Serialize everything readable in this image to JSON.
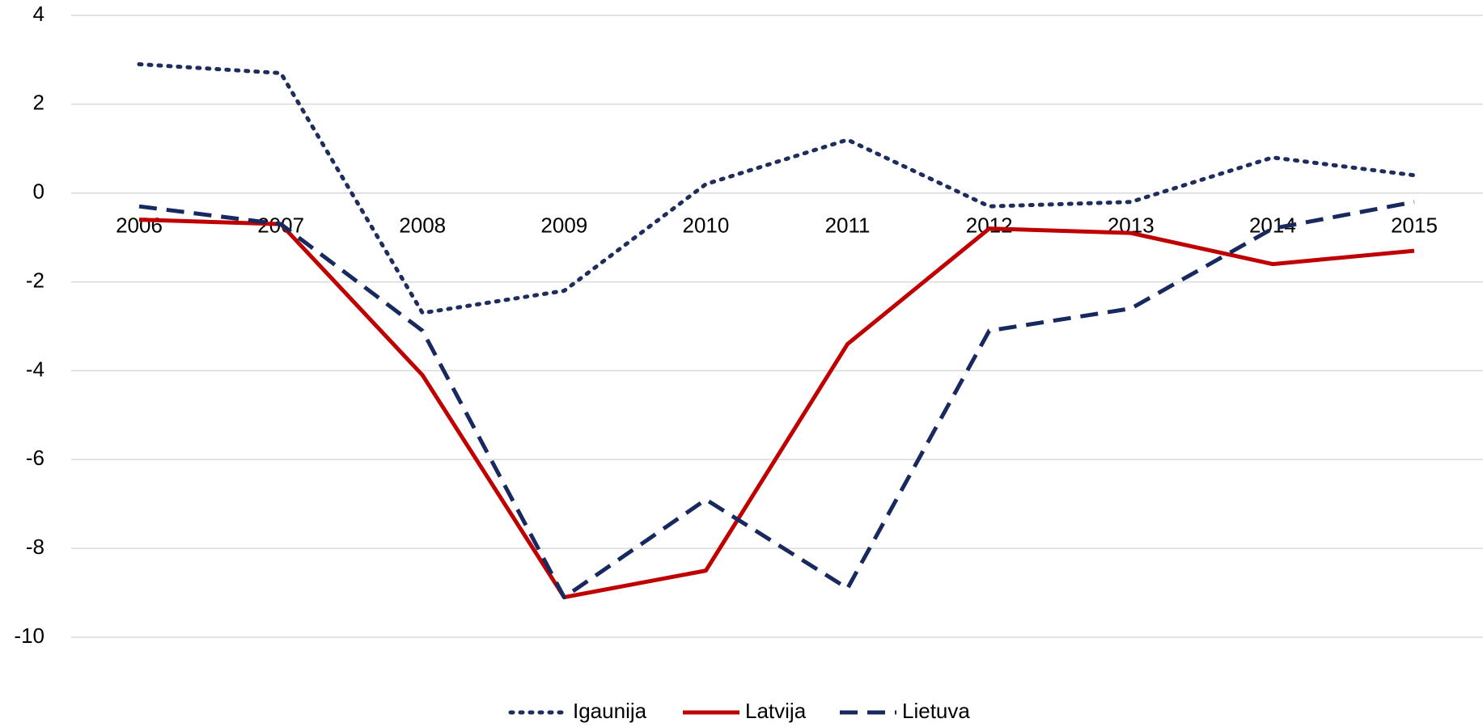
{
  "chart_data": {
    "type": "line",
    "categories": [
      "2006",
      "2007",
      "2008",
      "2009",
      "2010",
      "2011",
      "2012",
      "2013",
      "2014",
      "2015"
    ],
    "series": [
      {
        "name": "Igaunija",
        "color": "#1f2d5c",
        "style": "dotted",
        "values": [
          2.9,
          2.7,
          -2.7,
          -2.2,
          0.2,
          1.2,
          -0.3,
          -0.2,
          0.8,
          0.4
        ]
      },
      {
        "name": "Latvija",
        "color": "#c00000",
        "style": "solid",
        "values": [
          -0.6,
          -0.7,
          -4.1,
          -9.1,
          -8.5,
          -3.4,
          -0.8,
          -0.9,
          -1.6,
          -1.3
        ]
      },
      {
        "name": "Lietuva",
        "color": "#17295e",
        "style": "dashed",
        "values": [
          -0.3,
          -0.7,
          -3.1,
          -9.1,
          -6.9,
          -8.9,
          -3.1,
          -2.6,
          -0.8,
          -0.2
        ]
      }
    ],
    "ylim": [
      -10,
      4
    ],
    "yticks": [
      -10,
      -8,
      -6,
      -4,
      -2,
      0,
      2,
      4
    ],
    "grid": true,
    "legend": "bottom"
  }
}
